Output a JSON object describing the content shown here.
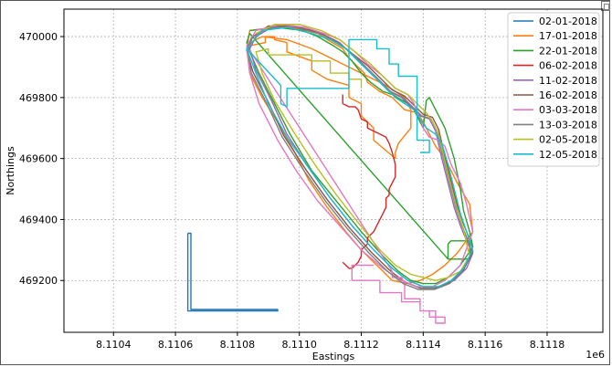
{
  "chart_data": {
    "type": "line",
    "xlabel": "Eastings",
    "ylabel": "Northings",
    "x_offset_label": "1e6",
    "xlim": [
      8110240,
      8111980
    ],
    "ylim": [
      469030,
      470090
    ],
    "x_tick_values": [
      8110400,
      8110600,
      8110800,
      8111000,
      8111200,
      8111400,
      8111600,
      8111800
    ],
    "x_tick_labels": [
      "8.1104",
      "8.1106",
      "8.1108",
      "8.1110",
      "8.1112",
      "8.1114",
      "8.1116",
      "8.1118"
    ],
    "y_tick_values": [
      469200,
      469400,
      469600,
      469800,
      470000
    ],
    "y_tick_labels": [
      "469200",
      "469400",
      "469600",
      "469800",
      "470000"
    ],
    "grid": true,
    "legend_position": "top-right",
    "series": [
      {
        "name": "02-01-2018",
        "color": "#1f77b4",
        "x": [
          8110640,
          8110640,
          8110930,
          8110930,
          8110650,
          8110650,
          8110640
        ],
        "y": [
          469355,
          469100,
          469100,
          469105,
          469105,
          469355,
          469355
        ]
      },
      {
        "name": "17-01-2018",
        "color": "#ff7f0e",
        "x": [
          8110830,
          8110840,
          8110920,
          8110950,
          8111000,
          8111060,
          8111090,
          8111140,
          8111160,
          8111190,
          8111210,
          8111220,
          8111260,
          8111280,
          8111300,
          8111320,
          8111340,
          8111380,
          8111400,
          8111420,
          8111440,
          8111470,
          8111510,
          8111550,
          8111560,
          8111510,
          8111470,
          8111430,
          8111390,
          8111350,
          8111300,
          8111260,
          8111200,
          8111150,
          8111090,
          8111030,
          8110980,
          8110930,
          8110880,
          8110840,
          8110830,
          8110840,
          8110880,
          8110960,
          8111040,
          8111100,
          8111160,
          8111220,
          8111280,
          8111340,
          8111360,
          8111360,
          8111320,
          8111310,
          8111310,
          8111240,
          8111240,
          8111200,
          8111200,
          8111160,
          8111160,
          8111090,
          8111040,
          8111040,
          8110960,
          8110960,
          8110920,
          8110920,
          8110890,
          8110890,
          8110840,
          8110830
        ],
        "y": [
          469960,
          470020,
          470030,
          470030,
          470025,
          470010,
          469990,
          469960,
          469930,
          469900,
          469880,
          469850,
          469820,
          469810,
          469800,
          469780,
          469760,
          469750,
          469720,
          469680,
          469640,
          469600,
          469520,
          469450,
          469360,
          469290,
          469250,
          469220,
          469200,
          469190,
          469200,
          469240,
          469300,
          469360,
          469440,
          469530,
          469630,
          469720,
          469800,
          469880,
          469960,
          469980,
          470000,
          469990,
          469960,
          469930,
          469900,
          469870,
          469840,
          469800,
          469760,
          469700,
          469650,
          469620,
          469600,
          469660,
          469700,
          469740,
          469780,
          469800,
          469840,
          469860,
          469890,
          469920,
          469950,
          469980,
          469990,
          470000,
          470000,
          469980,
          469970,
          469960
        ]
      },
      {
        "name": "22-01-2018",
        "color": "#2ca02c",
        "x": [
          8110840,
          8110930,
          8111010,
          8111060,
          8111110,
          8111140,
          8111170,
          8111200,
          8111230,
          8111270,
          8111300,
          8111350,
          8111370,
          8111390,
          8111400,
          8111410,
          8111420,
          8111440,
          8111470,
          8111500,
          8111520,
          8111530,
          8111550,
          8111560,
          8111520,
          8111480,
          8111440,
          8111400,
          8111360,
          8111320,
          8111270,
          8111200,
          8111120,
          8111040,
          8110970,
          8110920,
          8110870,
          8110840,
          8110830,
          8110840,
          8111480,
          8111480,
          8111490,
          8111530,
          8111550,
          8111550,
          8111480
        ],
        "y": [
          470020,
          470030,
          470020,
          470000,
          469970,
          469950,
          469920,
          469880,
          469850,
          469820,
          469810,
          469780,
          469760,
          469720,
          469700,
          469790,
          469800,
          469760,
          469700,
          469600,
          469500,
          469430,
          469360,
          469310,
          469250,
          469210,
          469190,
          469190,
          469200,
          469230,
          469280,
          469360,
          469460,
          469560,
          469680,
          469780,
          469880,
          469950,
          469980,
          470010,
          469270,
          469320,
          469330,
          469330,
          469330,
          469270,
          469270
        ]
      },
      {
        "name": "06-02-2018",
        "color": "#d62728",
        "x": [
          8111140,
          8111140,
          8111160,
          8111180,
          8111190,
          8111200,
          8111220,
          8111220,
          8111240,
          8111260,
          8111280,
          8111290,
          8111300,
          8111310,
          8111310,
          8111290,
          8111290,
          8111280,
          8111280,
          8111270,
          8111260,
          8111250,
          8111240,
          8111220,
          8111220,
          8111200,
          8111200,
          8111190,
          8111170,
          8111160,
          8111150,
          8111140
        ],
        "y": [
          469810,
          469780,
          469770,
          469770,
          469760,
          469730,
          469720,
          469700,
          469690,
          469680,
          469670,
          469650,
          469620,
          469580,
          469540,
          469500,
          469480,
          469470,
          469440,
          469420,
          469400,
          469380,
          469360,
          469340,
          469320,
          469300,
          469280,
          469260,
          469240,
          469240,
          469250,
          469260
        ]
      },
      {
        "name": "11-02-2018",
        "color": "#9467bd",
        "x": [
          8110860,
          8110910,
          8110990,
          8111070,
          8111130,
          8111170,
          8111210,
          8111250,
          8111290,
          8111330,
          8111360,
          8111390,
          8111420,
          8111440,
          8111460,
          8111480,
          8111500,
          8111520,
          8111540,
          8111560,
          8111540,
          8111500,
          8111450,
          8111400,
          8111350,
          8111300,
          8111240,
          8111170,
          8111100,
          8111030,
          8110960,
          8110910,
          8110860,
          8110840,
          8110860
        ],
        "y": [
          470000,
          470030,
          470030,
          470010,
          469980,
          469940,
          469900,
          469860,
          469820,
          469800,
          469770,
          469740,
          469730,
          469690,
          469600,
          469520,
          469440,
          469380,
          469330,
          469290,
          469240,
          469200,
          469180,
          469180,
          469200,
          469240,
          469300,
          469380,
          469470,
          469570,
          469680,
          469790,
          469890,
          469960,
          470000
        ]
      },
      {
        "name": "16-02-2018",
        "color": "#8c564b",
        "x": [
          8110850,
          8110900,
          8110980,
          8111060,
          8111120,
          8111170,
          8111220,
          8111260,
          8111300,
          8111340,
          8111370,
          8111400,
          8111430,
          8111450,
          8111470,
          8111490,
          8111510,
          8111530,
          8111550,
          8111560,
          8111530,
          8111490,
          8111440,
          8111390,
          8111340,
          8111290,
          8111230,
          8111160,
          8111090,
          8111020,
          8110950,
          8110900,
          8110850,
          8110830,
          8110850
        ],
        "y": [
          470000,
          470035,
          470035,
          470015,
          469985,
          469945,
          469905,
          469865,
          469825,
          469805,
          469775,
          469745,
          469735,
          469695,
          469605,
          469525,
          469445,
          469385,
          469335,
          469295,
          469235,
          469195,
          469175,
          469175,
          469195,
          469235,
          469295,
          469375,
          469465,
          469565,
          469675,
          469785,
          469885,
          469955,
          470000
        ]
      },
      {
        "name": "03-03-2018",
        "color": "#e377c2",
        "x": [
          8110830,
          8110860,
          8110940,
          8111020,
          8111080,
          8111130,
          8111180,
          8111220,
          8111270,
          8111310,
          8111350,
          8111370,
          8111390,
          8111400,
          8111420,
          8111450,
          8111470,
          8111490,
          8111520,
          8111540,
          8111560,
          8111520,
          8111470,
          8111430,
          8111380,
          8111330,
          8111270,
          8111200,
          8111130,
          8111060,
          8110990,
          8110930,
          8110870,
          8110840,
          8110830,
          8111300,
          8111300,
          8111330,
          8111340,
          8111340,
          8111380,
          8111390,
          8111390,
          8111420,
          8111420,
          8111440,
          8111440,
          8111470,
          8111470,
          8111440,
          8111440,
          8111390,
          8111390,
          8111330,
          8111330,
          8111260,
          8111260,
          8111170,
          8111170,
          8111190,
          8111240
        ],
        "y": [
          469970,
          470020,
          470040,
          470030,
          470010,
          469990,
          469950,
          469910,
          469870,
          469830,
          469810,
          469780,
          469730,
          469700,
          469670,
          469660,
          469640,
          469580,
          469520,
          469450,
          469360,
          469250,
          469200,
          469180,
          469180,
          469200,
          469240,
          469300,
          469380,
          469460,
          469560,
          469660,
          469780,
          469880,
          469970,
          469230,
          469210,
          469210,
          469190,
          469140,
          469140,
          469140,
          469100,
          469100,
          469080,
          469080,
          469060,
          469060,
          469080,
          469080,
          469100,
          469100,
          469130,
          469130,
          469160,
          469160,
          469200,
          469200,
          469250,
          469250,
          469250
        ]
      },
      {
        "name": "13-03-2018",
        "color": "#7f7f7f",
        "x": [
          8110845,
          8110900,
          8110985,
          8111065,
          8111125,
          8111175,
          8111215,
          8111255,
          8111295,
          8111335,
          8111365,
          8111395,
          8111425,
          8111445,
          8111465,
          8111485,
          8111505,
          8111525,
          8111545,
          8111555,
          8111525,
          8111485,
          8111435,
          8111385,
          8111335,
          8111285,
          8111225,
          8111155,
          8111085,
          8111015,
          8110945,
          8110895,
          8110845,
          8110835,
          8110845
        ],
        "y": [
          469995,
          470030,
          470030,
          470010,
          469980,
          469940,
          469900,
          469860,
          469820,
          469800,
          469770,
          469740,
          469730,
          469690,
          469600,
          469520,
          469440,
          469380,
          469330,
          469290,
          469230,
          469190,
          469170,
          469170,
          469190,
          469230,
          469290,
          469370,
          469460,
          469560,
          469670,
          469780,
          469880,
          469950,
          469995
        ]
      },
      {
        "name": "02-05-2018",
        "color": "#bcbd22",
        "x": [
          8110860,
          8110920,
          8111000,
          8111070,
          8111130,
          8111180,
          8111230,
          8111270,
          8111310,
          8111350,
          8111380,
          8111410,
          8111430,
          8111450,
          8111470,
          8111490,
          8111510,
          8111530,
          8111540,
          8111550,
          8111520,
          8111480,
          8111440,
          8111400,
          8111360,
          8111310,
          8111260,
          8111190,
          8111120,
          8111050,
          8110980,
          8110920,
          8110880,
          8110860,
          8110900,
          8110900,
          8111040,
          8111040,
          8111100,
          8111100,
          8111160,
          8111160,
          8111200,
          8111200
        ],
        "y": [
          470010,
          470040,
          470040,
          470020,
          469990,
          469950,
          469910,
          469870,
          469830,
          469810,
          469780,
          469750,
          469720,
          469680,
          469590,
          469510,
          469430,
          469370,
          469320,
          469280,
          469230,
          469210,
          469200,
          469210,
          469220,
          469250,
          469300,
          469390,
          469480,
          469580,
          469690,
          469790,
          469880,
          469950,
          469960,
          469940,
          469940,
          469920,
          469920,
          469880,
          469880,
          469860,
          469860,
          469830
        ]
      },
      {
        "name": "12-05-2018",
        "color": "#17becf",
        "x": [
          8110830,
          8110880,
          8110960,
          8111040,
          8111100,
          8111150,
          8111190,
          8111230,
          8111270,
          8111310,
          8111340,
          8111370,
          8111390,
          8111410,
          8111440,
          8111460,
          8111480,
          8111500,
          8111520,
          8111540,
          8111560,
          8111530,
          8111490,
          8111450,
          8111400,
          8111350,
          8111300,
          8111240,
          8111170,
          8111100,
          8111030,
          8110960,
          8110900,
          8110860,
          8110830,
          8110940,
          8110940,
          8110960,
          8110960,
          8111160,
          8111160,
          8111250,
          8111250,
          8111290,
          8111290,
          8111320,
          8111320,
          8111380,
          8111380,
          8111420,
          8111420,
          8111390
        ],
        "y": [
          469960,
          470020,
          470030,
          470010,
          469990,
          469960,
          469920,
          469880,
          469840,
          469800,
          469780,
          469760,
          469730,
          469700,
          469680,
          469650,
          469580,
          469500,
          469420,
          469360,
          469300,
          469240,
          469200,
          469180,
          469180,
          469200,
          469240,
          469300,
          469380,
          469470,
          469570,
          469670,
          469780,
          469880,
          469960,
          469840,
          469780,
          469770,
          469830,
          469830,
          469990,
          469990,
          469960,
          469960,
          469910,
          469910,
          469870,
          469870,
          469660,
          469660,
          469620,
          469620
        ]
      }
    ]
  }
}
